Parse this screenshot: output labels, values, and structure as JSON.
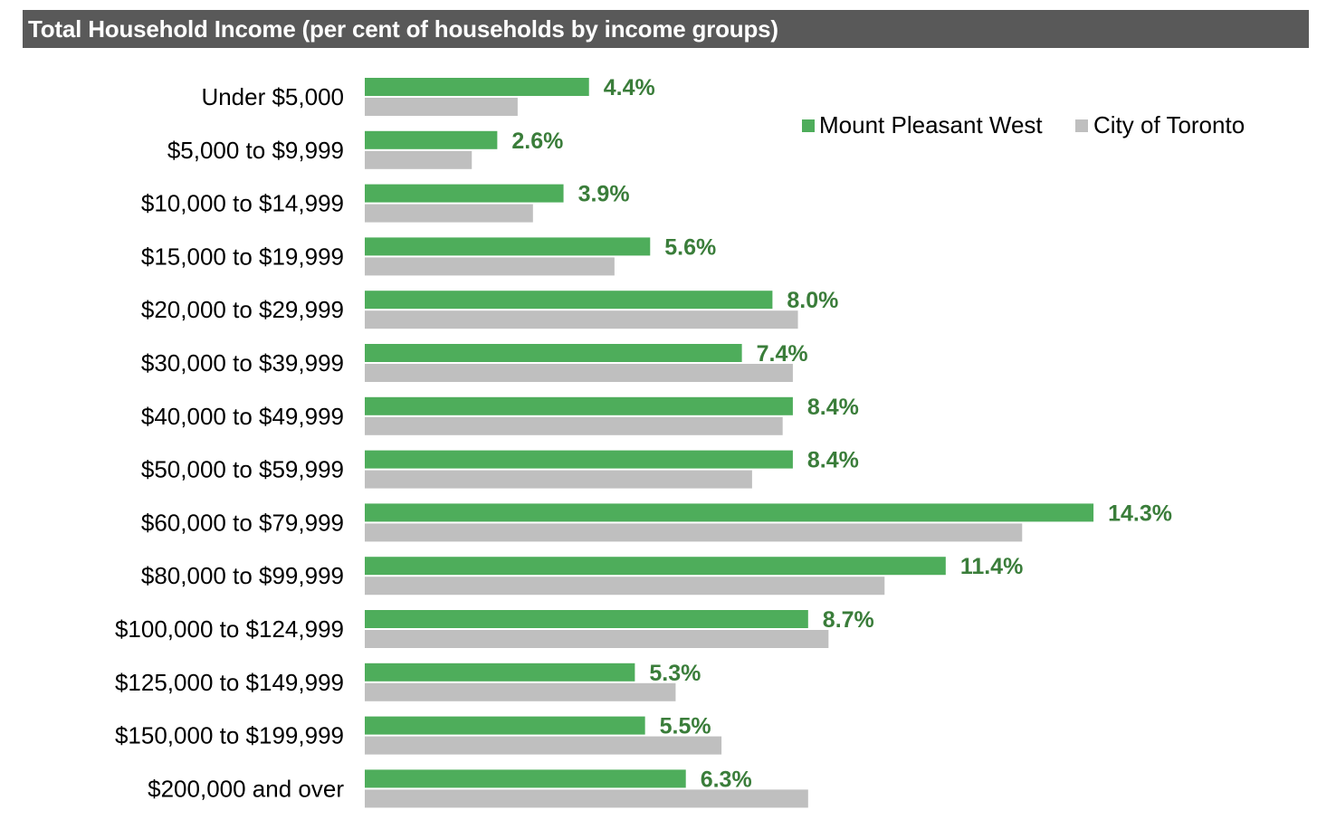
{
  "colors": {
    "title_bar": "#595959",
    "series_primary": "#4EAD5B",
    "series_secondary": "#BFBFBF",
    "value_label": "#3A7D3A"
  },
  "chart_data": {
    "type": "bar",
    "orientation": "horizontal",
    "title": "Total Household Income (per cent of households by income groups)",
    "xlabel": "",
    "ylabel": "",
    "xlim": [
      0,
      15
    ],
    "grid": false,
    "legend_position": "top-right",
    "categories": [
      "Under $5,000",
      "$5,000 to $9,999",
      "$10,000 to $14,999",
      "$15,000 to $19,999",
      "$20,000 to $29,999",
      "$30,000 to $39,999",
      "$40,000 to $49,999",
      "$50,000 to $59,999",
      "$60,000 to $79,999",
      "$80,000 to $99,999",
      "$100,000 to $124,999",
      "$125,000 to $149,999",
      "$150,000 to $199,999",
      "$200,000 and over"
    ],
    "series": [
      {
        "name": "Mount Pleasant West",
        "color": "#4EAD5B",
        "values": [
          4.4,
          2.6,
          3.9,
          5.6,
          8.0,
          7.4,
          8.4,
          8.4,
          14.3,
          11.4,
          8.7,
          5.3,
          5.5,
          6.3
        ],
        "labels": [
          "4.4%",
          "2.6%",
          "3.9%",
          "5.6%",
          "8.0%",
          "7.4%",
          "8.4%",
          "8.4%",
          "14.3%",
          "11.4%",
          "8.7%",
          "5.3%",
          "5.5%",
          "6.3%"
        ]
      },
      {
        "name": "City of Toronto",
        "color": "#BFBFBF",
        "values": [
          3.0,
          2.1,
          3.3,
          4.9,
          8.5,
          8.4,
          8.2,
          7.6,
          12.9,
          10.2,
          9.1,
          6.1,
          7.0,
          8.7
        ]
      }
    ]
  }
}
